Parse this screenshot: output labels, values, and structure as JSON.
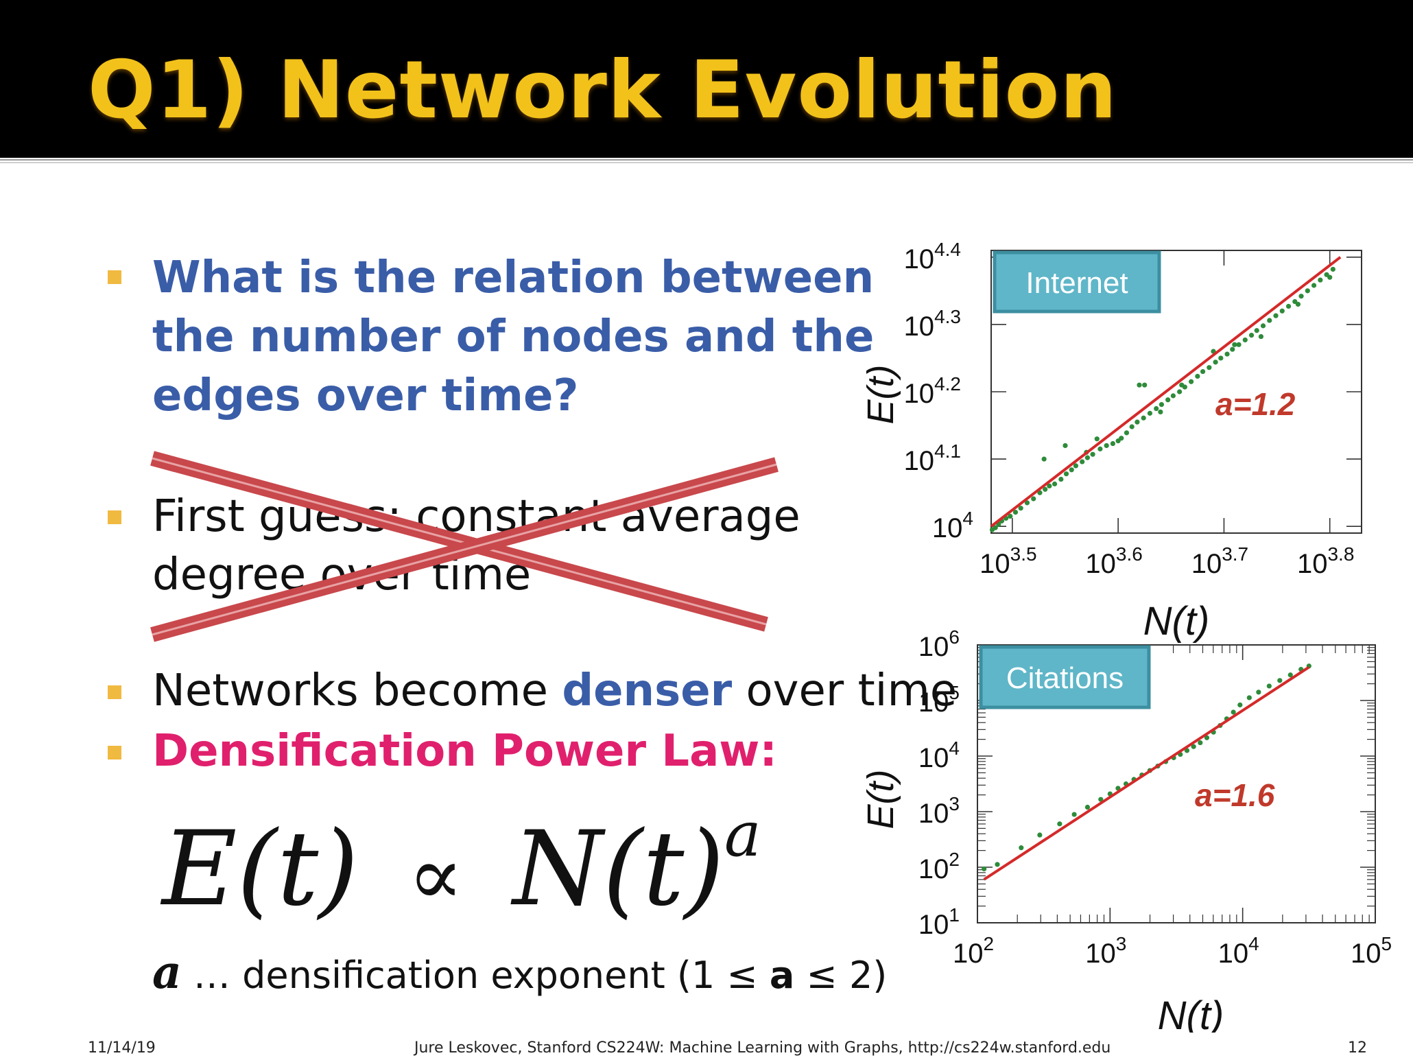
{
  "slide": {
    "title": "Q1) Network Evolution",
    "bullets": {
      "b1_line1": "What is the relation between",
      "b1_line2": "the number of nodes and the",
      "b1_line3": "edges over time?",
      "b2_line1": "First guess: constant average",
      "b2_line2": "degree over time",
      "b3_pre": "Networks become ",
      "b3_emph": "denser",
      "b3_post": " over time",
      "b4": "Densification Power Law:"
    },
    "formula": {
      "lhs": "E(t)",
      "rel": "∝",
      "rhs": "N(t)",
      "exp": "a"
    },
    "exponent_note": {
      "var": "a",
      "text_pre": " … densification exponent (1 ≤ ",
      "bold": "a",
      "text_post": " ≤ 2)"
    },
    "footer": {
      "date": "11/14/19",
      "credit": "Jure Leskovec, Stanford CS224W: Machine Learning with Graphs, http://cs224w.stanford.edu",
      "page": "12"
    },
    "colors": {
      "title": "#f2c21b",
      "bullet_square": "#f0b940",
      "blue_text": "#3a5da8",
      "pink_text": "#e0206d",
      "cross": "#c8484c",
      "fit_line": "#d42a2a",
      "data_points": "#2e8b3a",
      "label_box": "#5fb6c8"
    }
  },
  "chart_data": [
    {
      "type": "scatter",
      "label": "Internet",
      "xlabel": "N(t)",
      "ylabel": "E(t)",
      "scale": "log10",
      "x_ticks": [
        "10^3.5",
        "10^3.6",
        "10^3.7",
        "10^3.8"
      ],
      "y_ticks": [
        "10^4",
        "10^4.1",
        "10^4.2",
        "10^4.3",
        "10^4.4"
      ],
      "x_tick_exps": [
        3.5,
        3.6,
        3.7,
        3.8
      ],
      "y_tick_exps": [
        4.0,
        4.1,
        4.2,
        4.3,
        4.4
      ],
      "xlim_exp": [
        3.48,
        3.83
      ],
      "ylim_exp": [
        3.99,
        4.41
      ],
      "fit_label": "a=1.2",
      "fit": {
        "slope": 1.2,
        "x_exp": [
          3.48,
          3.81
        ],
        "y_exp": [
          4.0,
          4.4
        ]
      },
      "points_log10": [
        [
          3.481,
          3.995
        ],
        [
          3.484,
          3.998
        ],
        [
          3.487,
          4.003
        ],
        [
          3.49,
          4.008
        ],
        [
          3.494,
          4.012
        ],
        [
          3.498,
          4.015
        ],
        [
          3.503,
          4.021
        ],
        [
          3.508,
          4.027
        ],
        [
          3.514,
          4.035
        ],
        [
          3.52,
          4.041
        ],
        [
          3.526,
          4.05
        ],
        [
          3.531,
          4.055
        ],
        [
          3.535,
          4.06
        ],
        [
          3.54,
          4.063
        ],
        [
          3.546,
          4.07
        ],
        [
          3.551,
          4.078
        ],
        [
          3.556,
          4.084
        ],
        [
          3.56,
          4.09
        ],
        [
          3.566,
          4.096
        ],
        [
          3.571,
          4.102
        ],
        [
          3.576,
          4.107
        ],
        [
          3.583,
          4.115
        ],
        [
          3.589,
          4.12
        ],
        [
          3.595,
          4.123
        ],
        [
          3.6,
          4.127
        ],
        [
          3.603,
          4.131
        ],
        [
          3.608,
          4.139
        ],
        [
          3.613,
          4.148
        ],
        [
          3.618,
          4.155
        ],
        [
          3.624,
          4.161
        ],
        [
          3.63,
          4.168
        ],
        [
          3.636,
          4.175
        ],
        [
          3.641,
          4.181
        ],
        [
          3.647,
          4.188
        ],
        [
          3.652,
          4.194
        ],
        [
          3.658,
          4.2
        ],
        [
          3.663,
          4.207
        ],
        [
          3.669,
          4.215
        ],
        [
          3.675,
          4.223
        ],
        [
          3.68,
          4.23
        ],
        [
          3.686,
          4.236
        ],
        [
          3.692,
          4.244
        ],
        [
          3.697,
          4.25
        ],
        [
          3.703,
          4.256
        ],
        [
          3.708,
          4.263
        ],
        [
          3.714,
          4.27
        ],
        [
          3.72,
          4.277
        ],
        [
          3.726,
          4.284
        ],
        [
          3.731,
          4.291
        ],
        [
          3.737,
          4.298
        ],
        [
          3.743,
          4.306
        ],
        [
          3.749,
          4.313
        ],
        [
          3.755,
          4.32
        ],
        [
          3.761,
          4.327
        ],
        [
          3.767,
          4.334
        ],
        [
          3.773,
          4.342
        ],
        [
          3.779,
          4.35
        ],
        [
          3.785,
          4.358
        ],
        [
          3.791,
          4.366
        ],
        [
          3.797,
          4.374
        ],
        [
          3.803,
          4.382
        ],
        [
          3.53,
          4.1
        ],
        [
          3.55,
          4.12
        ],
        [
          3.57,
          4.11
        ],
        [
          3.58,
          4.13
        ],
        [
          3.62,
          4.21
        ],
        [
          3.625,
          4.21
        ],
        [
          3.64,
          4.17
        ],
        [
          3.66,
          4.21
        ],
        [
          3.69,
          4.26
        ],
        [
          3.71,
          4.27
        ],
        [
          3.735,
          4.282
        ],
        [
          3.77,
          4.33
        ],
        [
          3.8,
          4.37
        ]
      ]
    },
    {
      "type": "scatter",
      "label": "Citations",
      "xlabel": "N(t)",
      "ylabel": "E(t)",
      "scale": "log10",
      "x_ticks": [
        "10^2",
        "10^3",
        "10^4",
        "10^5"
      ],
      "y_ticks": [
        "10^1",
        "10^2",
        "10^3",
        "10^4",
        "10^5",
        "10^6"
      ],
      "x_tick_exps": [
        2,
        3,
        4,
        5
      ],
      "y_tick_exps": [
        1,
        2,
        3,
        4,
        5,
        6
      ],
      "xlim_exp": [
        2,
        5
      ],
      "ylim_exp": [
        1,
        6
      ],
      "fit_label": "a=1.6",
      "fit": {
        "slope": 1.6,
        "x_exp": [
          2.05,
          4.5
        ],
        "y_exp": [
          1.78,
          5.6
        ]
      },
      "points_log10": [
        [
          2.05,
          1.97
        ],
        [
          2.15,
          2.05
        ],
        [
          2.33,
          2.35
        ],
        [
          2.47,
          2.58
        ],
        [
          2.62,
          2.78
        ],
        [
          2.73,
          2.95
        ],
        [
          2.83,
          3.08
        ],
        [
          2.93,
          3.22
        ],
        [
          3.0,
          3.32
        ],
        [
          3.06,
          3.42
        ],
        [
          3.12,
          3.5
        ],
        [
          3.18,
          3.58
        ],
        [
          3.24,
          3.66
        ],
        [
          3.3,
          3.74
        ],
        [
          3.36,
          3.82
        ],
        [
          3.42,
          3.9
        ],
        [
          3.48,
          3.97
        ],
        [
          3.53,
          4.03
        ],
        [
          3.58,
          4.1
        ],
        [
          3.63,
          4.17
        ],
        [
          3.68,
          4.24
        ],
        [
          3.73,
          4.33
        ],
        [
          3.78,
          4.43
        ],
        [
          3.83,
          4.55
        ],
        [
          3.88,
          4.67
        ],
        [
          3.93,
          4.79
        ],
        [
          3.98,
          4.92
        ],
        [
          4.05,
          5.05
        ],
        [
          4.12,
          5.15
        ],
        [
          4.2,
          5.26
        ],
        [
          4.28,
          5.36
        ],
        [
          4.36,
          5.46
        ],
        [
          4.44,
          5.56
        ],
        [
          4.5,
          5.62
        ]
      ]
    }
  ]
}
